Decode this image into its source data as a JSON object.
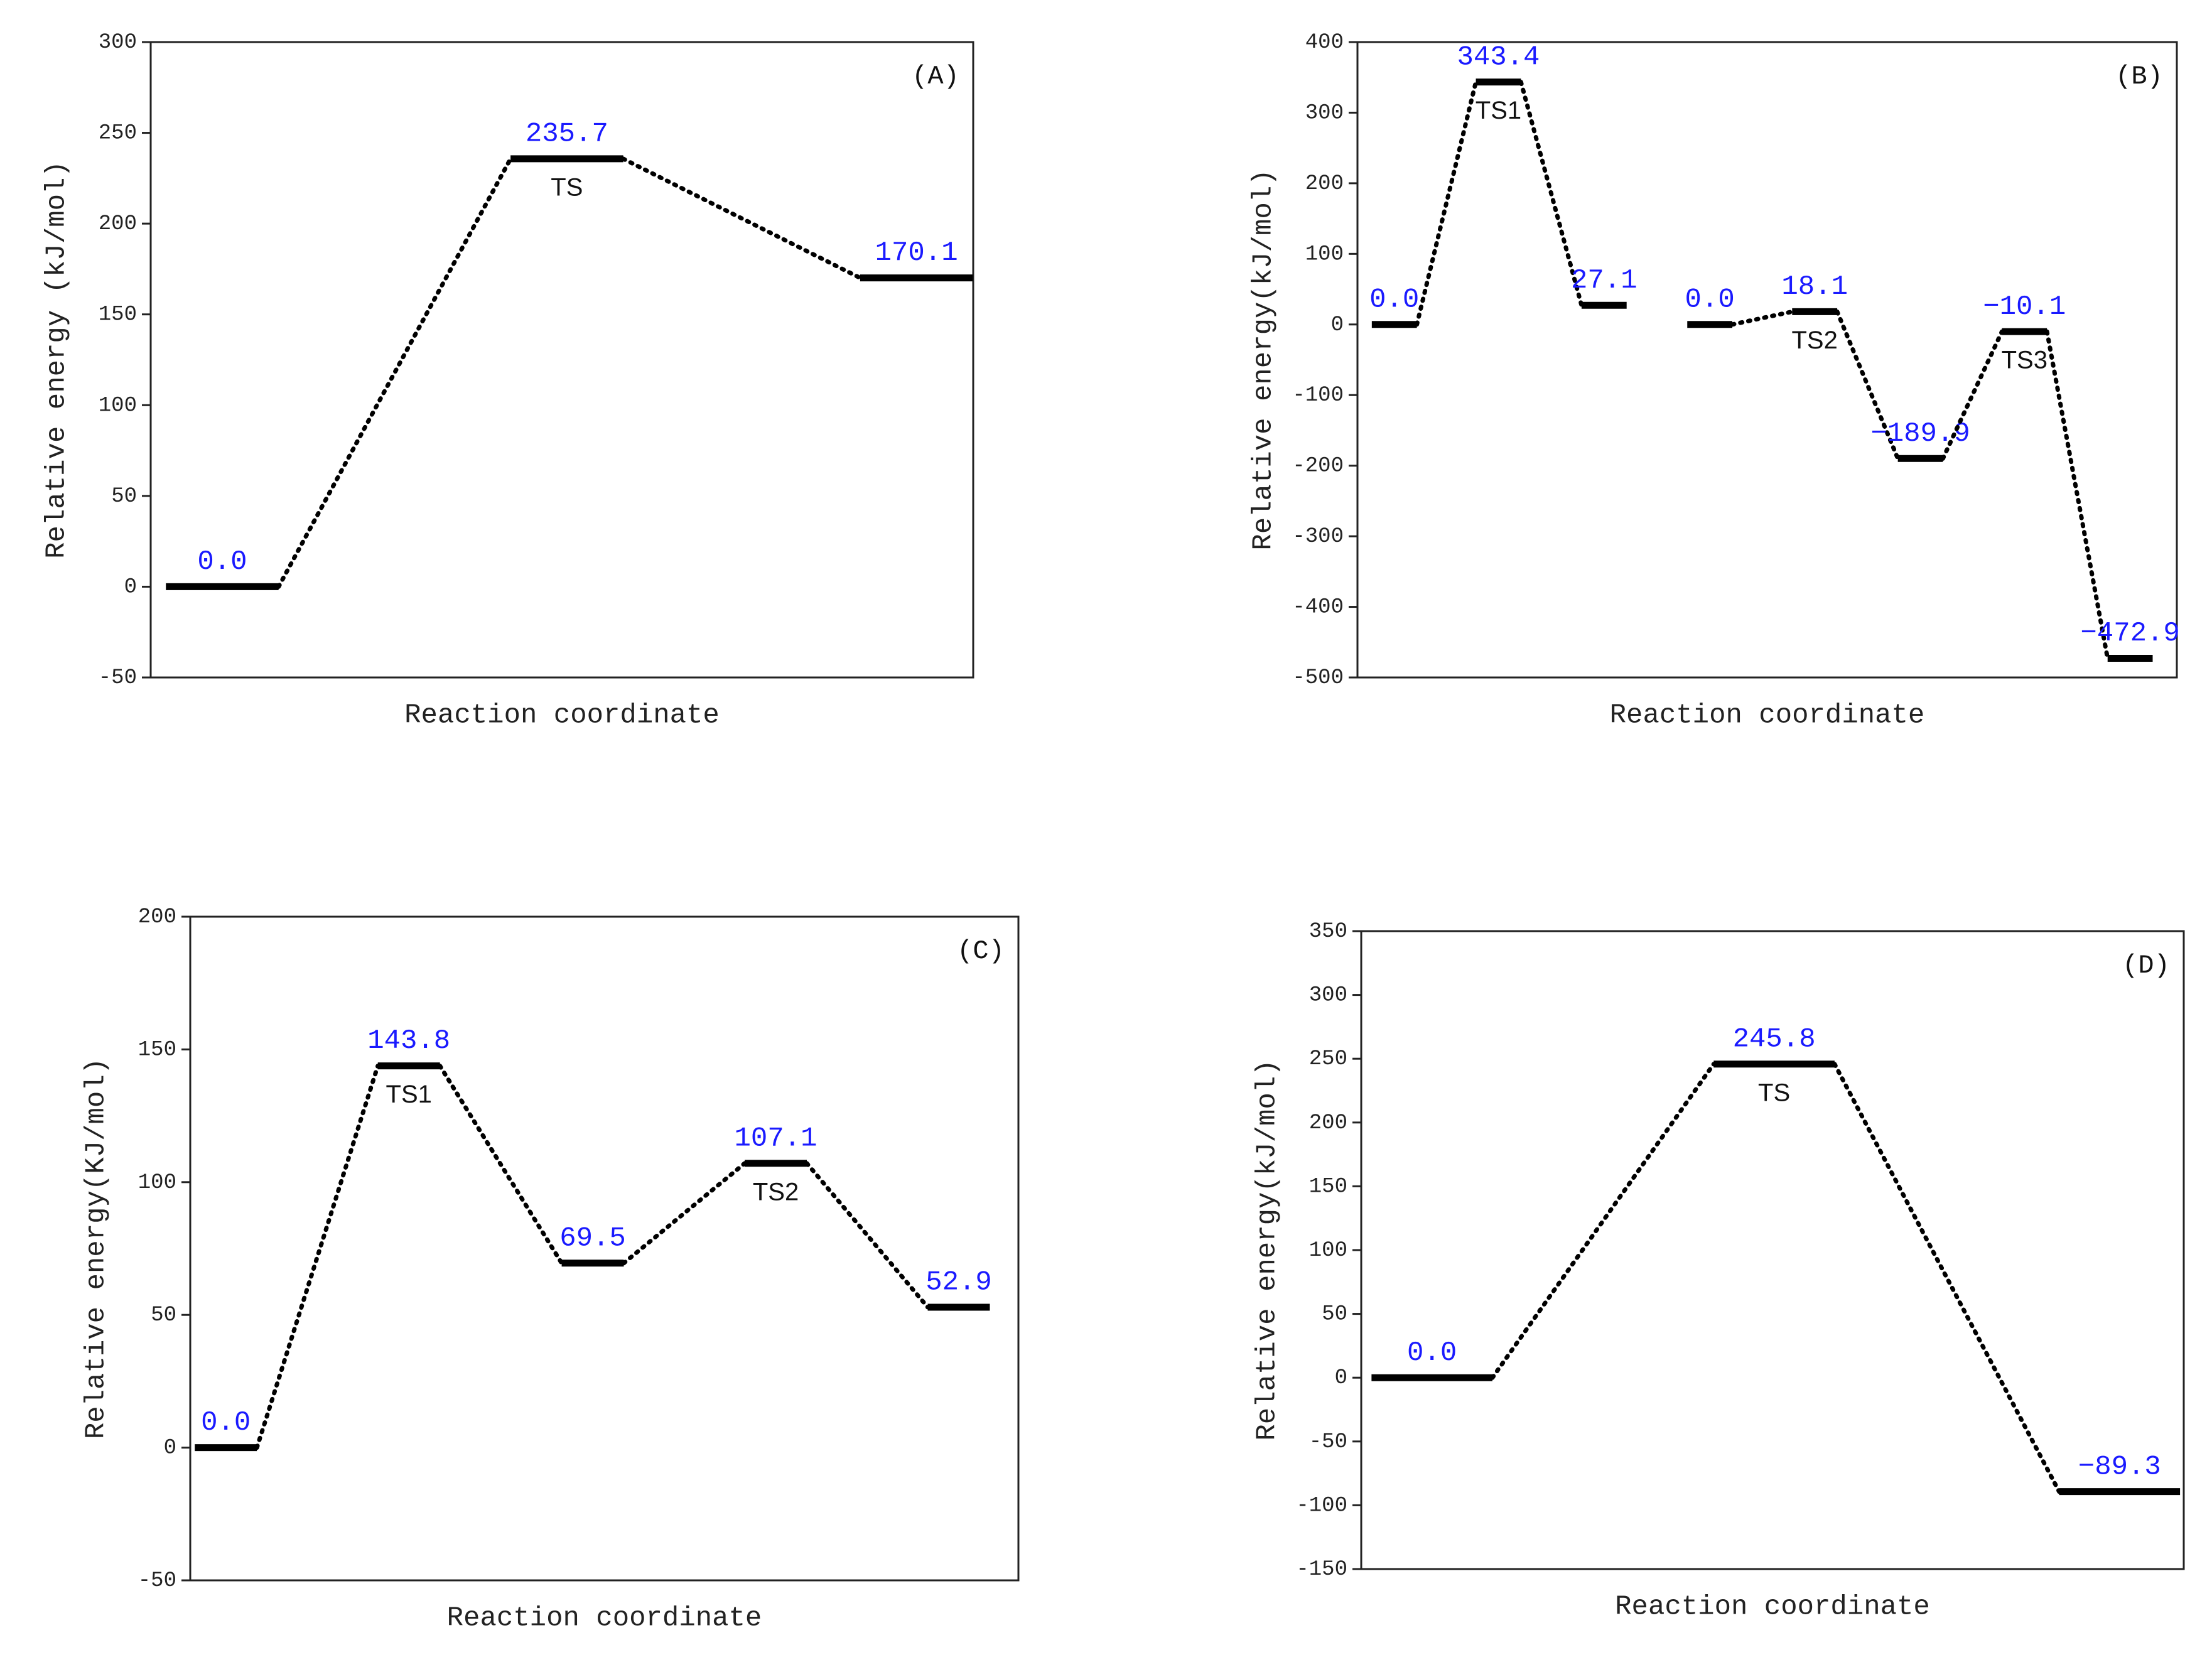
{
  "chart_data": [
    {
      "type": "energy-profile",
      "panel": "(A)",
      "ylabel": "Relative energy (kJ/mol)",
      "xlabel": "Reaction coordinate",
      "ylim": [
        -50,
        300
      ],
      "yticks": [
        -50,
        0,
        50,
        100,
        150,
        200,
        250,
        300
      ],
      "series": [
        {
          "values": [
            0,
            235.7,
            170.1
          ],
          "value_labels": [
            "0.0",
            "235.7",
            "170.1"
          ],
          "names": [
            null,
            "TS",
            null
          ]
        }
      ]
    },
    {
      "type": "energy-profile",
      "panel": "(B)",
      "ylabel": "Relative energy(kJ/mol)",
      "xlabel": "Reaction coordinate",
      "ylim": [
        -500,
        400
      ],
      "yticks": [
        -500,
        -400,
        -300,
        -200,
        -100,
        0,
        100,
        200,
        300,
        400
      ],
      "series": [
        {
          "values": [
            0,
            343.4,
            27.1
          ],
          "value_labels": [
            "0.0",
            "343.4",
            "27.1"
          ],
          "names": [
            null,
            "TS1",
            null
          ]
        },
        {
          "values": [
            0,
            18.1,
            -189.9,
            -10.1,
            -472.9
          ],
          "value_labels": [
            "0.0",
            "18.1",
            "−189.9",
            "−10.1",
            "−472.9"
          ],
          "names": [
            null,
            "TS2",
            null,
            "TS3",
            null
          ]
        }
      ]
    },
    {
      "type": "energy-profile",
      "panel": "(C)",
      "ylabel": "Relative energy(KJ/mol)",
      "xlabel": "Reaction coordinate",
      "ylim": [
        -50,
        200
      ],
      "yticks": [
        -50,
        0,
        50,
        100,
        150,
        200
      ],
      "series": [
        {
          "values": [
            0,
            143.8,
            69.5,
            107.1,
            52.9
          ],
          "value_labels": [
            "0.0",
            "143.8",
            "69.5",
            "107.1",
            "52.9"
          ],
          "names": [
            null,
            "TS1",
            null,
            "TS2",
            null
          ]
        }
      ]
    },
    {
      "type": "energy-profile",
      "panel": "(D)",
      "ylabel": "Relative energy(kJ/mol)",
      "xlabel": "Reaction coordinate",
      "ylim": [
        -150,
        350
      ],
      "yticks": [
        -150,
        -100,
        -50,
        0,
        50,
        100,
        150,
        200,
        250,
        300,
        350
      ],
      "series": [
        {
          "values": [
            0,
            245.8,
            -89.3
          ],
          "value_labels": [
            "0.0",
            "245.8",
            "−89.3"
          ],
          "names": [
            null,
            "TS",
            null
          ]
        }
      ]
    }
  ]
}
